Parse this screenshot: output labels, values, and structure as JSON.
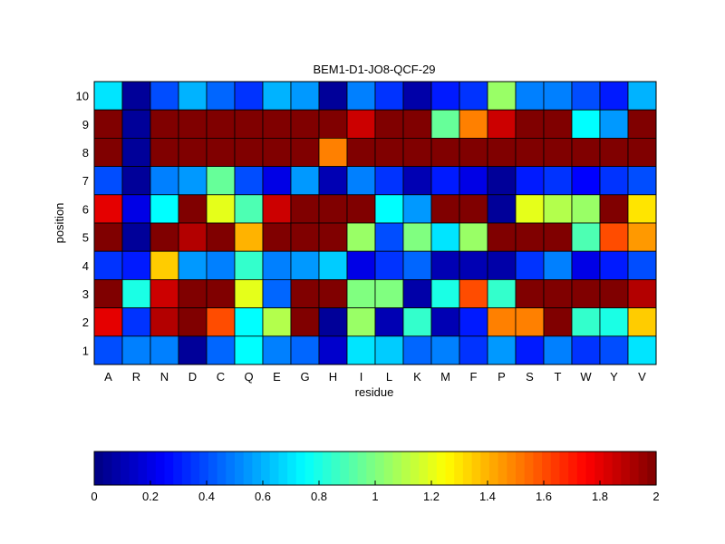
{
  "chart_data": {
    "type": "heatmap",
    "title": "BEM1-D1-JO8-QCF-29",
    "xlabel": "residue",
    "ylabel": "position",
    "x_categories": [
      "A",
      "R",
      "N",
      "D",
      "C",
      "Q",
      "E",
      "G",
      "H",
      "I",
      "L",
      "K",
      "M",
      "F",
      "P",
      "S",
      "T",
      "W",
      "Y",
      "V"
    ],
    "y_categories": [
      "10",
      "9",
      "8",
      "7",
      "6",
      "5",
      "4",
      "3",
      "2",
      "1"
    ],
    "color_range": [
      0,
      2
    ],
    "colormap": "jet",
    "colorbar": {
      "orientation": "horizontal",
      "position": "bottom",
      "ticks": [
        "0",
        "0.2",
        "0.4",
        "0.6",
        "0.8",
        "1",
        "1.2",
        "1.4",
        "1.6",
        "1.8",
        "2"
      ],
      "tick_values": [
        0,
        0.2,
        0.4,
        0.6,
        0.8,
        1,
        1.2,
        1.4,
        1.6,
        1.8,
        2
      ]
    },
    "values": [
      [
        0.7,
        0.05,
        0.4,
        0.6,
        0.45,
        0.35,
        0.6,
        0.55,
        0.05,
        0.5,
        0.35,
        0.08,
        0.3,
        0.35,
        1.05,
        0.5,
        0.5,
        0.4,
        0.3,
        0.6
      ],
      [
        2.0,
        0.05,
        2.0,
        2.0,
        2.0,
        2.0,
        2.0,
        2.0,
        2.0,
        1.85,
        2.0,
        2.0,
        0.95,
        1.5,
        1.85,
        2.0,
        2.0,
        0.75,
        0.55,
        2.0
      ],
      [
        2.0,
        0.05,
        2.0,
        2.0,
        2.0,
        2.0,
        2.0,
        2.0,
        1.5,
        2.0,
        2.0,
        2.0,
        2.0,
        2.0,
        2.0,
        2.0,
        2.0,
        2.0,
        2.0,
        2.0
      ],
      [
        0.4,
        0.05,
        0.5,
        0.55,
        0.95,
        0.4,
        0.2,
        0.55,
        0.1,
        0.5,
        0.35,
        0.1,
        0.3,
        0.2,
        0.05,
        0.3,
        0.35,
        0.25,
        0.35,
        0.4
      ],
      [
        1.8,
        0.2,
        0.75,
        2.0,
        1.2,
        0.9,
        1.85,
        2.0,
        2.0,
        2.0,
        0.75,
        0.55,
        2.0,
        2.0,
        0.05,
        1.2,
        1.1,
        1.05,
        2.0,
        1.3
      ],
      [
        2.0,
        0.05,
        2.0,
        1.9,
        2.0,
        1.4,
        2.0,
        2.0,
        2.0,
        1.05,
        0.4,
        1.0,
        0.7,
        1.05,
        2.0,
        2.0,
        2.0,
        0.9,
        1.6,
        1.45
      ],
      [
        0.35,
        0.3,
        1.35,
        0.55,
        0.5,
        0.85,
        0.5,
        0.55,
        0.65,
        0.2,
        0.35,
        0.45,
        0.1,
        0.1,
        0.08,
        0.35,
        0.5,
        0.2,
        0.3,
        0.4
      ],
      [
        2.0,
        0.8,
        1.85,
        2.0,
        2.0,
        1.2,
        0.45,
        2.0,
        2.0,
        1.0,
        1.0,
        0.08,
        0.8,
        1.6,
        0.85,
        2.0,
        2.0,
        2.0,
        2.0,
        1.9
      ],
      [
        1.8,
        0.35,
        1.9,
        2.0,
        1.6,
        0.75,
        1.1,
        2.0,
        0.05,
        1.05,
        0.1,
        0.85,
        0.1,
        0.3,
        1.5,
        1.5,
        2.0,
        0.85,
        0.8,
        1.35
      ],
      [
        0.4,
        0.5,
        0.5,
        0.05,
        0.45,
        0.75,
        0.5,
        0.45,
        0.15,
        0.7,
        0.65,
        0.45,
        0.5,
        0.35,
        0.55,
        0.3,
        0.5,
        0.35,
        0.4,
        0.7
      ]
    ]
  }
}
